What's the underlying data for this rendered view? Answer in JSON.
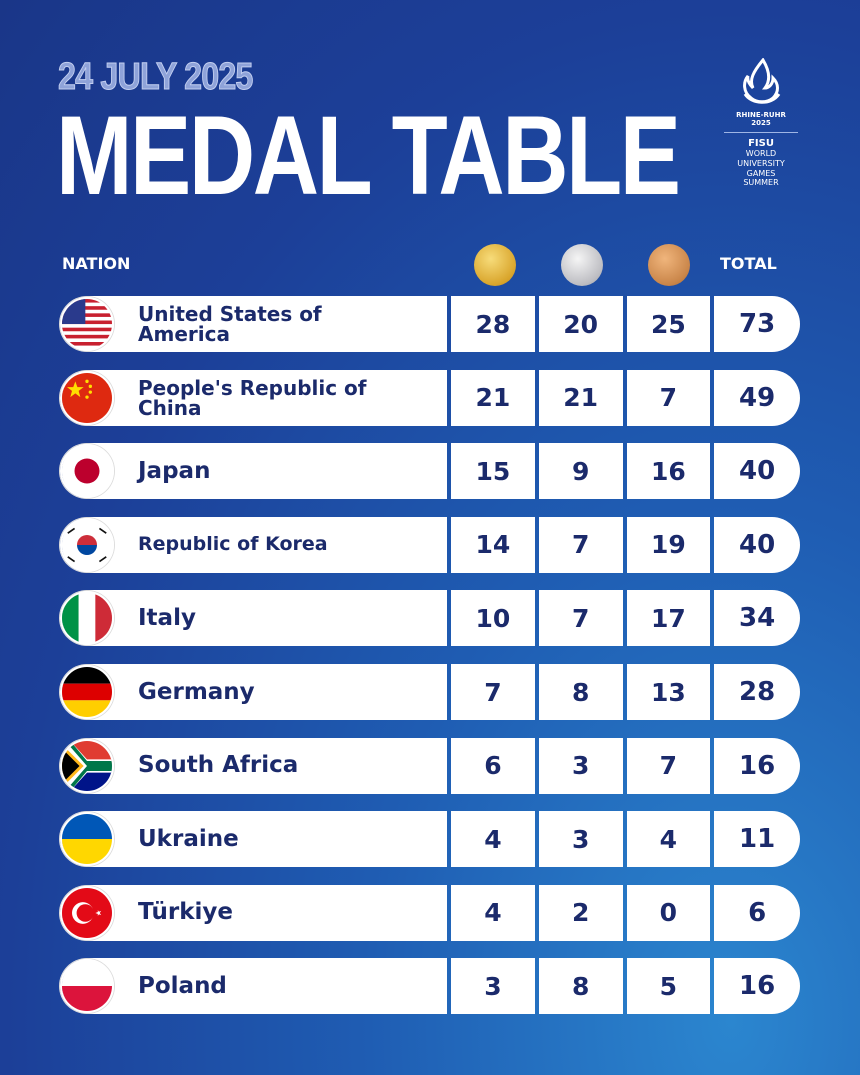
{
  "date": "24 JULY 2025",
  "title": "MEDAL TABLE",
  "logo": {
    "city": "RHINE-RUHR",
    "year": "2025",
    "org": "FISU",
    "lines": [
      "WORLD",
      "UNIVERSITY",
      "GAMES",
      "SUMMER"
    ]
  },
  "headers": {
    "nation": "NATION",
    "gold": "gold-medal-icon",
    "silver": "silver-medal-icon",
    "bronze": "bronze-medal-icon",
    "total": "TOTAL"
  },
  "colors": {
    "gold": "#e1b53c",
    "silver": "#c9c9cc",
    "bronze": "#c98549",
    "text": "#1b2a6b",
    "background": "#1c3f98"
  },
  "rows": [
    {
      "nation": "United States of America",
      "flag": "us",
      "gold": "28",
      "silver": "20",
      "bronze": "25",
      "total": "73"
    },
    {
      "nation": "People's Republic of China",
      "flag": "cn",
      "gold": "21",
      "silver": "21",
      "bronze": "7",
      "total": "49"
    },
    {
      "nation": "Japan",
      "flag": "jp",
      "gold": "15",
      "silver": "9",
      "bronze": "16",
      "total": "40"
    },
    {
      "nation": "Republic of Korea",
      "flag": "kr",
      "gold": "14",
      "silver": "7",
      "bronze": "19",
      "total": "40"
    },
    {
      "nation": "Italy",
      "flag": "it",
      "gold": "10",
      "silver": "7",
      "bronze": "17",
      "total": "34"
    },
    {
      "nation": "Germany",
      "flag": "de",
      "gold": "7",
      "silver": "8",
      "bronze": "13",
      "total": "28"
    },
    {
      "nation": "South Africa",
      "flag": "za",
      "gold": "6",
      "silver": "3",
      "bronze": "7",
      "total": "16"
    },
    {
      "nation": "Ukraine",
      "flag": "ua",
      "gold": "4",
      "silver": "3",
      "bronze": "4",
      "total": "11"
    },
    {
      "nation": "Türkiye",
      "flag": "tr",
      "gold": "4",
      "silver": "2",
      "bronze": "0",
      "total": "6"
    },
    {
      "nation": "Poland",
      "flag": "pl",
      "gold": "3",
      "silver": "8",
      "bronze": "5",
      "total": "16"
    }
  ]
}
